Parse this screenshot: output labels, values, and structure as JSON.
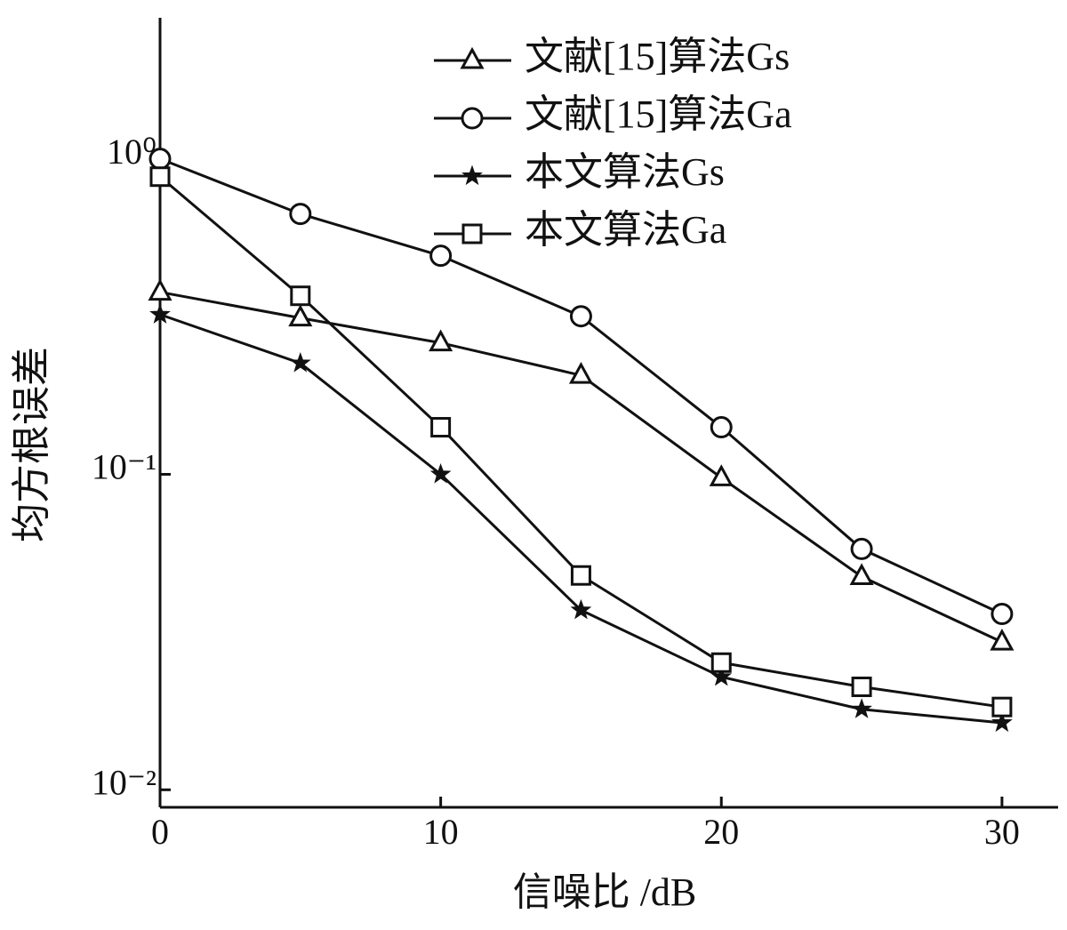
{
  "chart_data": {
    "type": "line",
    "x_label": "信噪比 /dB",
    "y_label": "均方根误差",
    "x": [
      0,
      5,
      10,
      15,
      20,
      25,
      30
    ],
    "xlim": [
      0,
      32
    ],
    "xticks": [
      0,
      10,
      20,
      30
    ],
    "ylim": [
      0.0088,
      2.8
    ],
    "yscale": "log",
    "yticks": [
      {
        "value": 1,
        "label": "10⁰"
      },
      {
        "value": 0.1,
        "label": "10⁻¹"
      },
      {
        "value": 0.01,
        "label": "10⁻²"
      }
    ],
    "legend": "upper right",
    "series": [
      {
        "name": "文献[15]算法Gs",
        "color": "#111111",
        "marker": "triangle",
        "values": [
          0.378,
          0.313,
          0.261,
          0.206,
          0.0975,
          0.0474,
          0.0294
        ]
      },
      {
        "name": "文献[15]算法Ga",
        "color": "#111111",
        "marker": "circle",
        "values": [
          1.0,
          0.669,
          0.493,
          0.317,
          0.141,
          0.058,
          0.0361
        ]
      },
      {
        "name": "本文算法Gs",
        "color": "#111111",
        "marker": "star",
        "values": [
          0.321,
          0.225,
          0.1,
          0.0371,
          0.0228,
          0.018,
          0.0163
        ]
      },
      {
        "name": "本文算法Ga",
        "color": "#111111",
        "marker": "square",
        "values": [
          0.878,
          0.368,
          0.141,
          0.0478,
          0.0253,
          0.0212,
          0.0183
        ]
      }
    ]
  }
}
